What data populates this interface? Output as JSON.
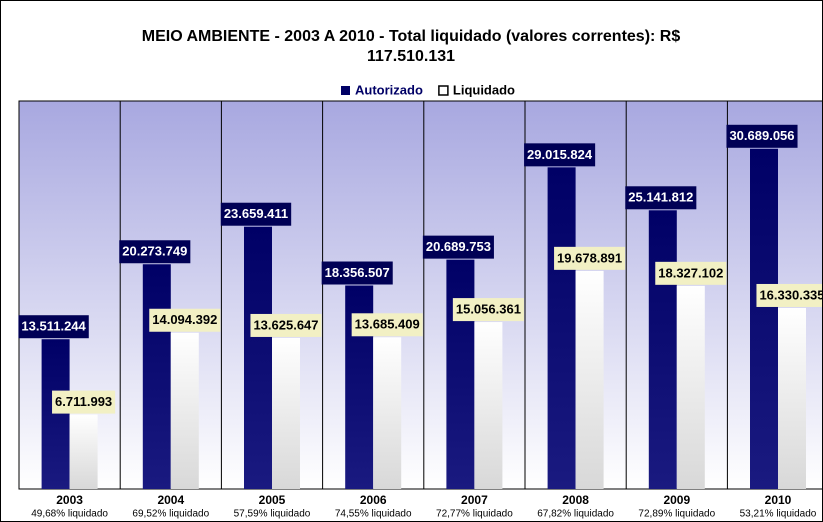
{
  "chart_data": {
    "type": "bar",
    "title": "MEIO AMBIENTE - 2003 A 2010 - Total liquidado (valores correntes): R$ 117.510.131",
    "categories": [
      "2003",
      "2004",
      "2005",
      "2006",
      "2007",
      "2008",
      "2009",
      "2010"
    ],
    "category_notes": [
      "49,68% liquidado",
      "69,52% liquidado",
      "57,59% liquidado",
      "74,55% liquidado",
      "72,77% liquidado",
      "67,82% liquidado",
      "72,89% liquidado",
      "53,21% liquidado"
    ],
    "series": [
      {
        "name": "Autorizado",
        "color": "#000066",
        "values": [
          13511244,
          20273749,
          23659411,
          18356507,
          20689753,
          29015824,
          25141812,
          30689056
        ],
        "value_labels": [
          "13.511.244",
          "20.273.749",
          "23.659.411",
          "18.356.507",
          "20.689.753",
          "29.015.824",
          "25.141.812",
          "30.689.056"
        ]
      },
      {
        "name": "Liquidado",
        "color": "#ffffff",
        "values": [
          6711993,
          14094392,
          13625647,
          13685409,
          15056361,
          19678891,
          18327102,
          16330335
        ],
        "value_labels": [
          "6.711.993",
          "14.094.392",
          "13.625.647",
          "13.685.409",
          "15.056.361",
          "19.678.891",
          "18.327.102",
          "16.330.335"
        ]
      }
    ],
    "ylim": [
      0,
      35000000
    ],
    "legend": "top"
  }
}
